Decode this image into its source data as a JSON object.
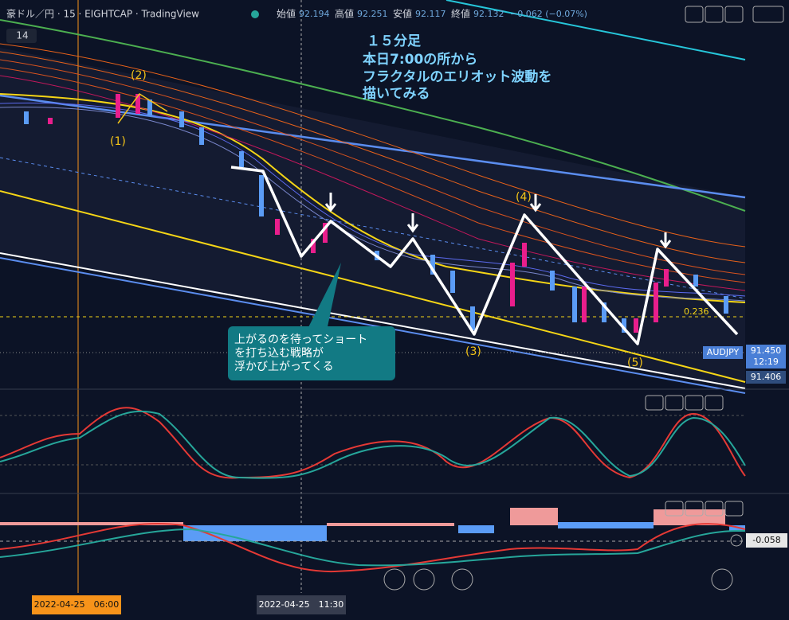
{
  "header": {
    "symbol": "豪ドル／円 · 15 · EIGHTCAP · TradingView",
    "open_label": "始値",
    "open": "92.194",
    "high_label": "高値",
    "high": "92.251",
    "low_label": "安値",
    "low": "92.117",
    "close_label": "終値",
    "close": "92.132",
    "change": "−0.062 (−0.07%)",
    "interval_badge": "14"
  },
  "annotations": {
    "note": [
      "１５分足",
      "本日7:00の所から",
      "フラクタルのエリオット波動を",
      "描いてみる"
    ],
    "waves": [
      "(1)",
      "(2)",
      "(3)",
      "(4)",
      "(5)"
    ],
    "callout": [
      "上がるのを待ってショート",
      "を打ち込む戦略が",
      "浮かび上がってくる"
    ],
    "fib": "0.236"
  },
  "price_axis": {
    "symbol": "AUDJPY",
    "price": "91.450",
    "countdown": "12:19",
    "low": "91.406",
    "macd": "-0.058"
  },
  "time_axis": {
    "left": "2022-04-25　06:00",
    "cursor": "2022-04-25　11:30"
  }
}
